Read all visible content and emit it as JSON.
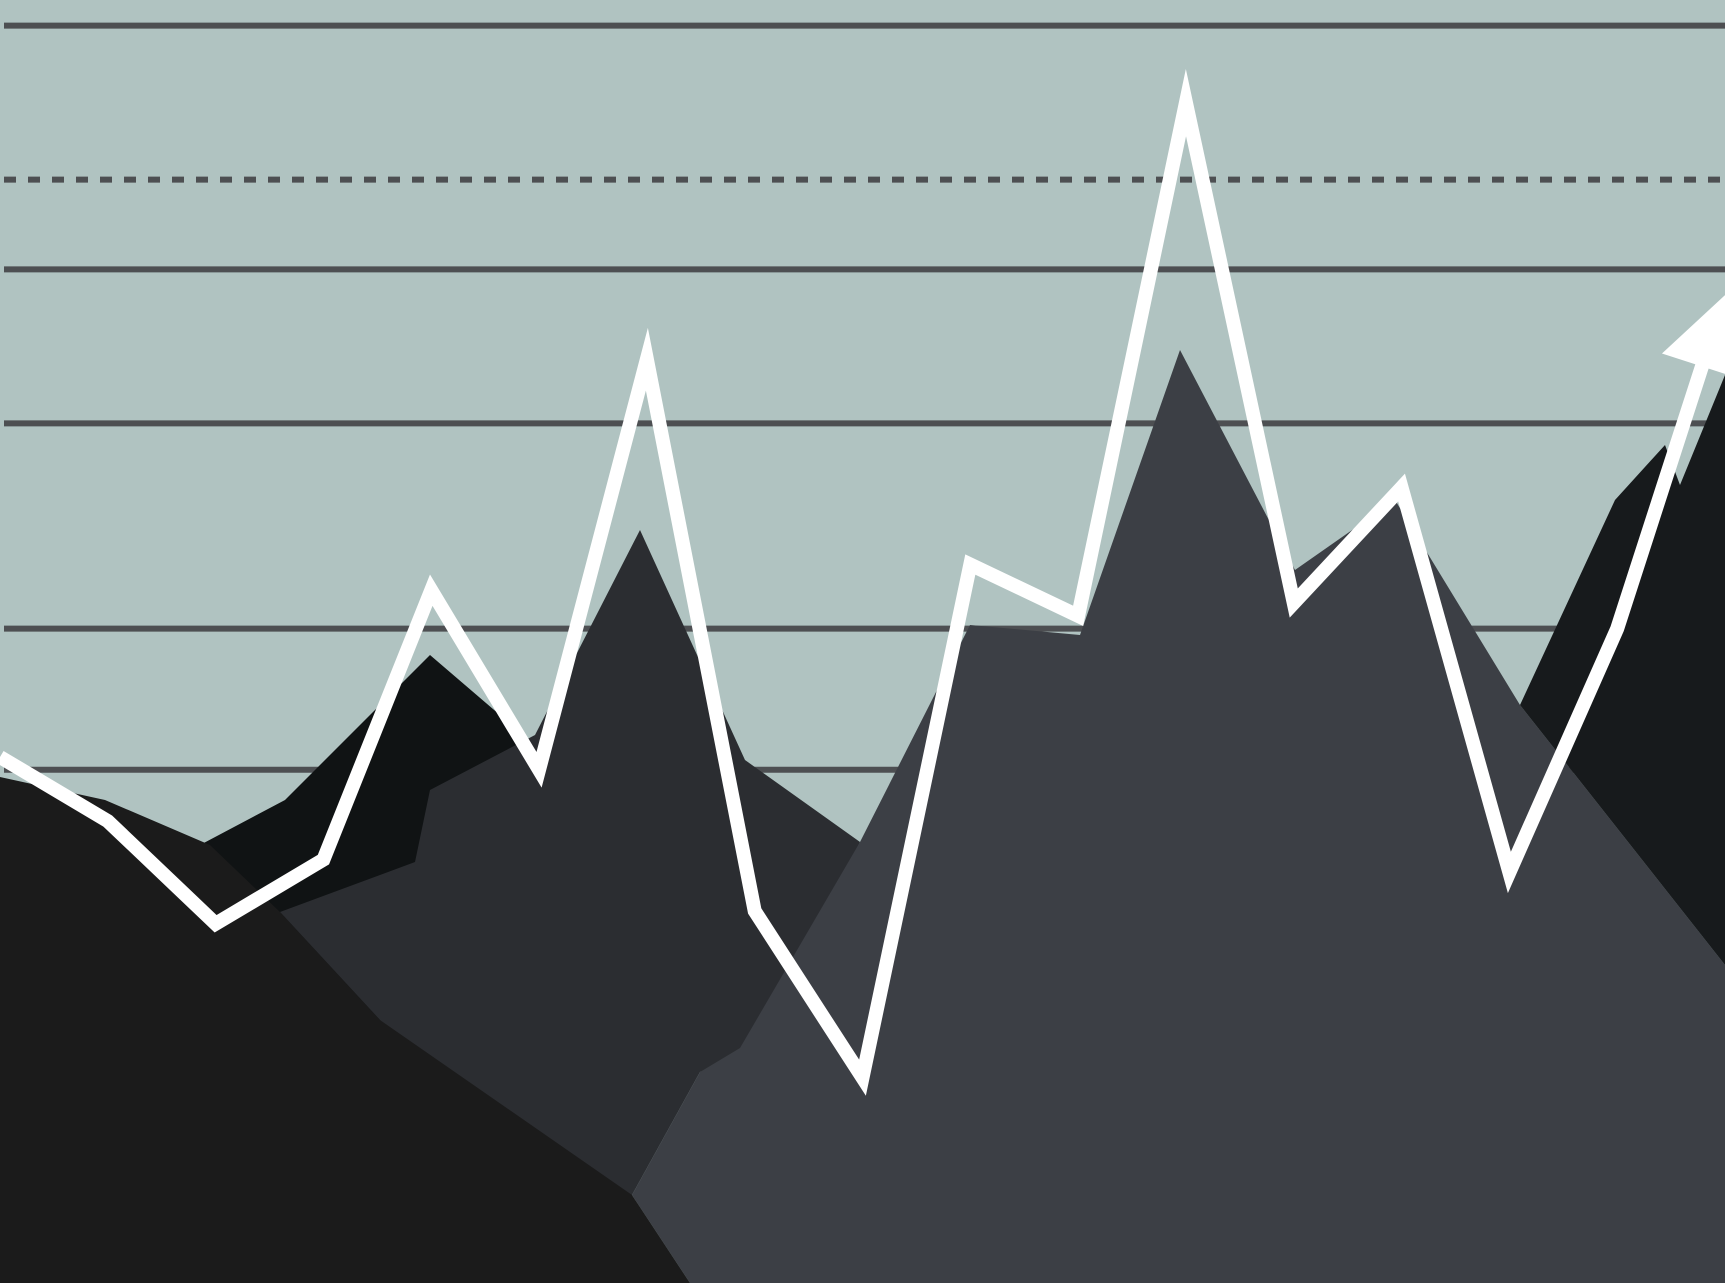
{
  "colors": {
    "background": "#b0c3c1",
    "grid": "#4d4f52",
    "line": "#ffffff",
    "mountain_far": "#101314",
    "mountain_mid": "#2b2d31",
    "mountain_near": "#3c3f45",
    "mountain_foreground": "#1b1b1b",
    "mountain_right": "#171a1c"
  },
  "chart_data": {
    "type": "line",
    "title": "",
    "xlabel": "",
    "ylabel": "",
    "x": [
      0,
      1,
      2,
      3,
      4,
      5,
      6,
      7,
      8,
      9,
      10,
      11,
      12,
      13,
      14,
      15,
      16
    ],
    "series": [
      {
        "name": "trend",
        "values": [
          4.1,
          3.6,
          2.8,
          3.3,
          5.4,
          4.0,
          7.2,
          2.9,
          1.6,
          5.6,
          5.2,
          9.2,
          5.3,
          6.2,
          3.2,
          5.1,
          7.7
        ]
      }
    ],
    "ylim": [
      0,
      10
    ],
    "gridlines": [
      4.0,
      5.1,
      6.7,
      7.9,
      8.6,
      9.8,
      10.6
    ],
    "reference_line": 8.6,
    "end_marker": "arrow",
    "grid": true
  }
}
